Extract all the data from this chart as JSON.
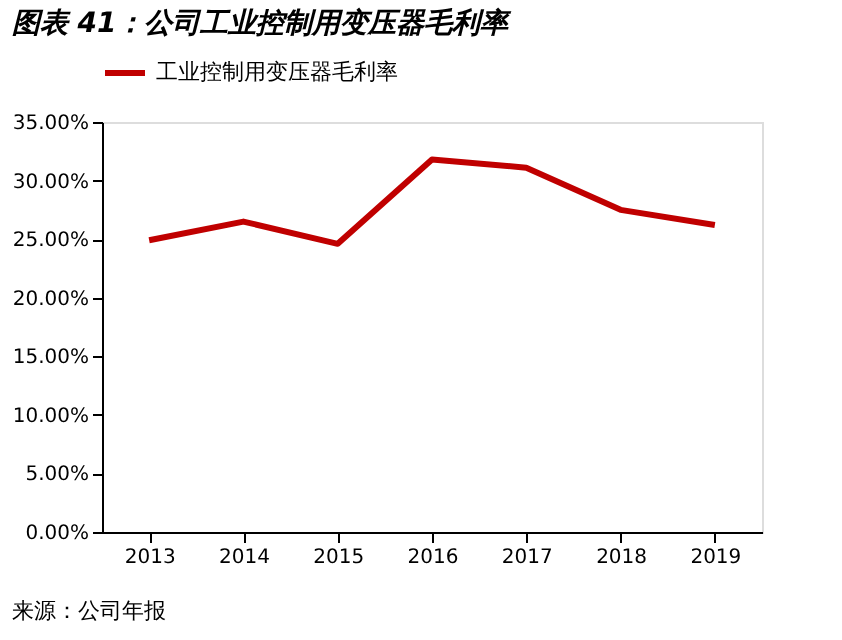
{
  "chart_data": {
    "type": "line",
    "title": "图表 41：公司工业控制用变压器毛利率",
    "categories": [
      "2013",
      "2014",
      "2015",
      "2016",
      "2017",
      "2018",
      "2019"
    ],
    "series": [
      {
        "name": "工业控制用变压器毛利率",
        "color": "#c00000",
        "values": [
          24.9,
          26.5,
          24.6,
          31.8,
          31.1,
          27.5,
          26.2
        ]
      }
    ],
    "ylim": [
      0,
      35
    ],
    "yticks": [
      {
        "value": 0,
        "label": "0.00%"
      },
      {
        "value": 5,
        "label": "5.00%"
      },
      {
        "value": 10,
        "label": "10.00%"
      },
      {
        "value": 15,
        "label": "15.00%"
      },
      {
        "value": 20,
        "label": "20.00%"
      },
      {
        "value": 25,
        "label": "25.00%"
      },
      {
        "value": 30,
        "label": "30.00%"
      },
      {
        "value": 35,
        "label": "35.00%"
      }
    ],
    "grid": false,
    "legend": "top",
    "marker": "none",
    "line_style": "solid",
    "annotations": [
      "来源：公司年报"
    ]
  }
}
